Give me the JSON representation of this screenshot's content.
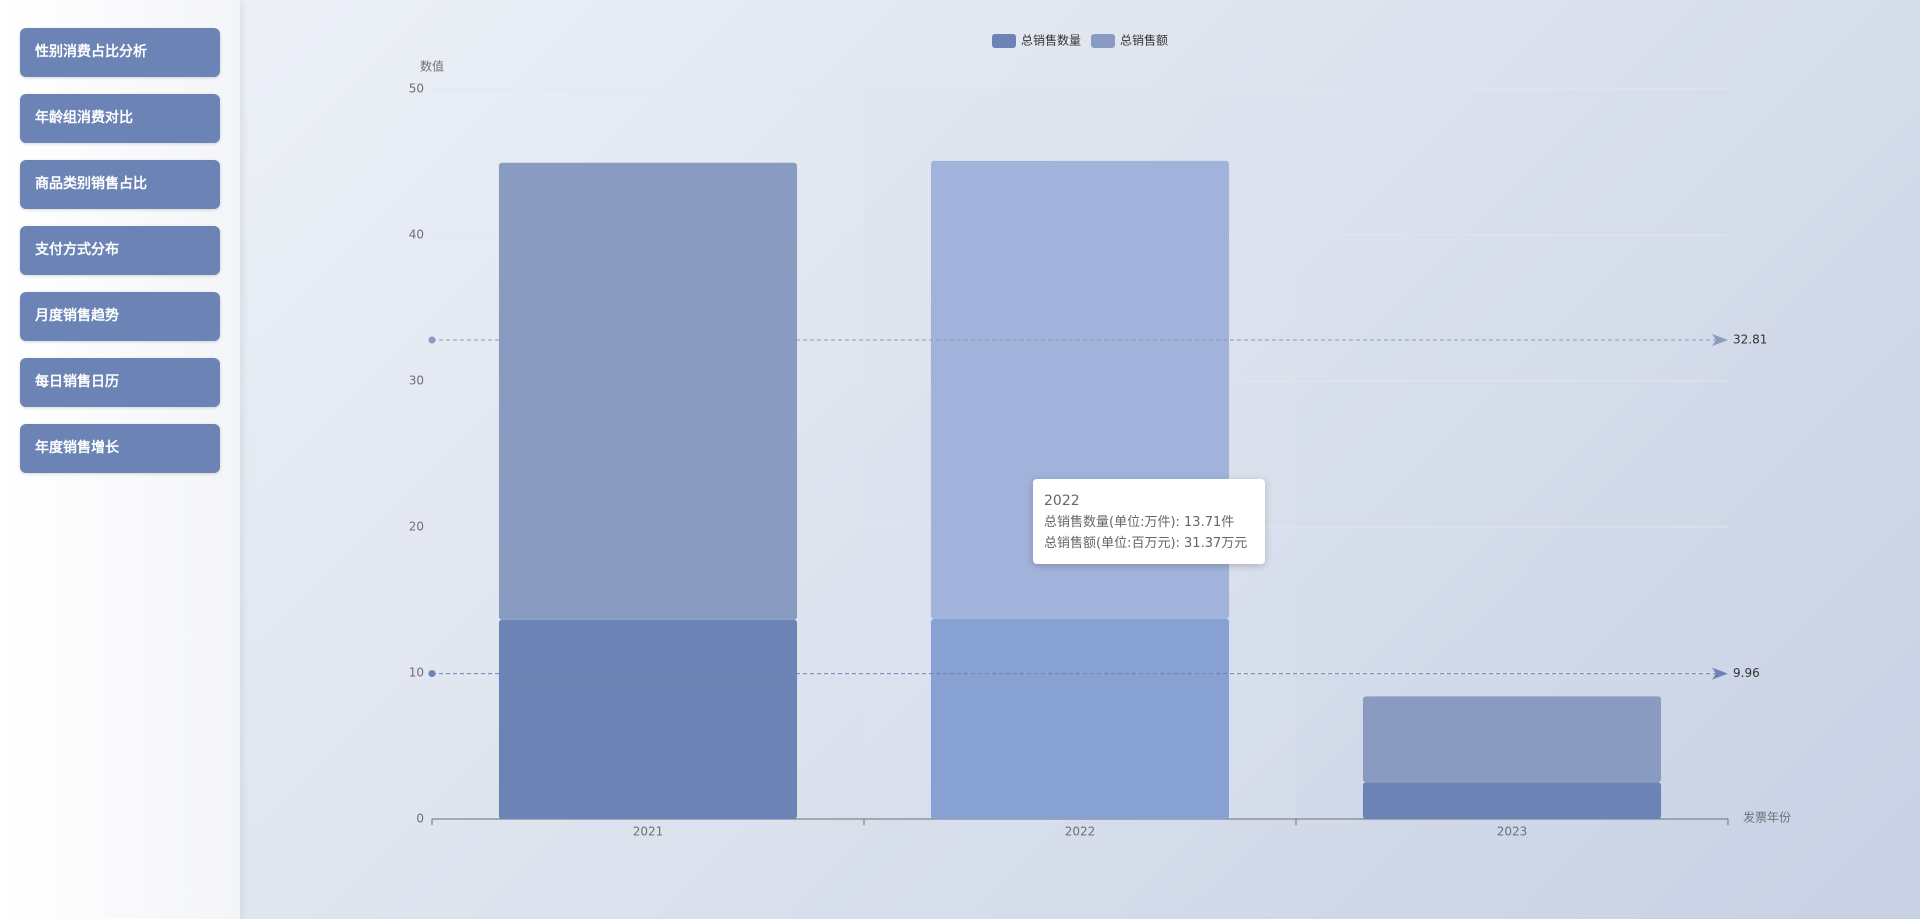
{
  "sidebar": {
    "items": [
      "性别消费占比分析",
      "年龄组消费对比",
      "商品类别销售占比",
      "支付方式分布",
      "月度销售趋势",
      "每日销售日历",
      "年度销售增长"
    ]
  },
  "chart_data": {
    "type": "bar",
    "stacked": true,
    "y_axis_label": "数值",
    "x_axis_label": "发票年份",
    "categories": [
      "2021",
      "2022",
      "2023"
    ],
    "series": [
      {
        "name": "总销售数量",
        "color": "#6b84b5",
        "emphasis_color": "#87a1d2",
        "values": [
          13.65,
          13.71,
          2.52
        ]
      },
      {
        "name": "总销售额",
        "color": "#8a9bc2",
        "emphasis_color": "#a1b3db",
        "values": [
          31.3,
          31.37,
          5.88
        ]
      }
    ],
    "mark_lines": [
      {
        "value": 32.81,
        "color": "#8a9bc2"
      },
      {
        "value": 9.96,
        "color": "#6b84b5"
      }
    ],
    "ylim": [
      0,
      50
    ],
    "yticks": [
      0,
      10,
      20,
      30,
      40,
      50
    ],
    "grid": true,
    "tooltip": {
      "title": "2022",
      "lines": [
        "总销售数量(单位:万件): 13.71件",
        "总销售额(单位:百万元): 31.37万元"
      ]
    }
  }
}
